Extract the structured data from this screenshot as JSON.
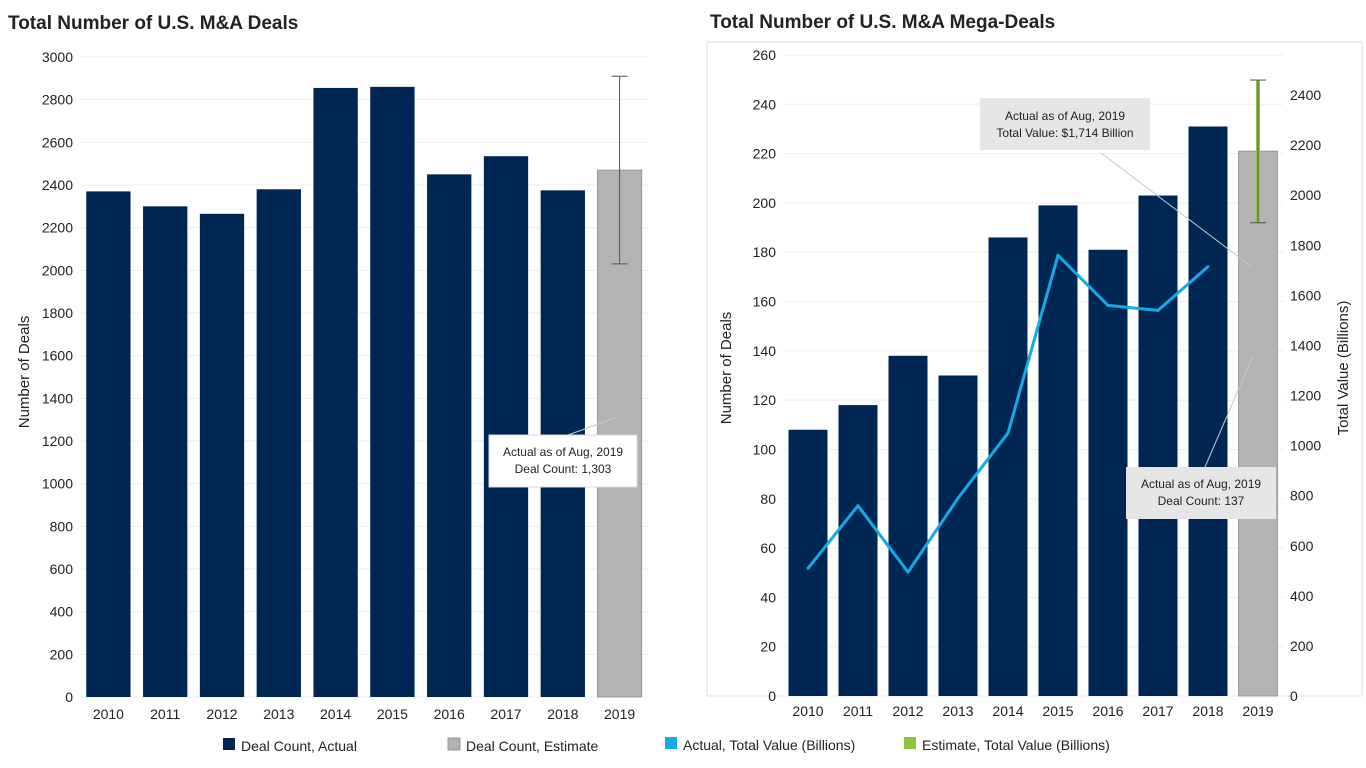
{
  "colors": {
    "actual": "#002654",
    "estimate": "#b3b3b3",
    "value_line": "#16a9e8",
    "estimate_value": "#8cc63f",
    "grid": "#eeeeee",
    "annotation_bg": "#e6e6e6"
  },
  "legend": [
    {
      "label": "Deal Count, Actual",
      "color": "#002654",
      "type": "bar"
    },
    {
      "label": "Deal Count, Estimate",
      "color": "#b3b3b3",
      "type": "bar"
    },
    {
      "label": "Actual, Total Value (Billions)",
      "color": "#16a9e8",
      "type": "line"
    },
    {
      "label": "Estimate, Total Value (Billions)",
      "color": "#8cc63f",
      "type": "line"
    }
  ],
  "chart_data": [
    {
      "type": "bar",
      "title": "Total Number of U.S. M&A Deals",
      "ylabel": "Number of Deals",
      "xlabel": "",
      "ylim": [
        0,
        3000
      ],
      "yticks": [
        0,
        200,
        400,
        600,
        800,
        1000,
        1200,
        1400,
        1600,
        1800,
        2000,
        2200,
        2400,
        2600,
        2800,
        3000
      ],
      "categories": [
        "2010",
        "2011",
        "2012",
        "2013",
        "2014",
        "2015",
        "2016",
        "2017",
        "2018",
        "2019"
      ],
      "series": [
        {
          "name": "Deal Count, Actual",
          "values": [
            2370,
            2300,
            2265,
            2380,
            2855,
            2860,
            2450,
            2535,
            2375,
            null
          ]
        },
        {
          "name": "Deal Count, Estimate",
          "values": [
            null,
            null,
            null,
            null,
            null,
            null,
            null,
            null,
            null,
            2470
          ]
        }
      ],
      "error_bar": {
        "category": "2019",
        "low": 2030,
        "high": 2910
      },
      "annotation": {
        "lines": [
          "Actual as of Aug, 2019",
          "Deal Count: 1,303"
        ],
        "category": "2019"
      }
    },
    {
      "type": "bar",
      "title": "Total Number of U.S. M&A Mega-Deals",
      "ylabel": "Number of Deals",
      "y2label": "Total Value (Billions)",
      "xlabel": "",
      "ylim": [
        0,
        260
      ],
      "yticks": [
        0,
        20,
        40,
        60,
        80,
        100,
        120,
        140,
        160,
        180,
        200,
        220,
        240,
        260
      ],
      "y2lim": [
        0,
        2560
      ],
      "y2ticks": [
        0,
        200,
        400,
        600,
        800,
        1000,
        1200,
        1400,
        1600,
        1800,
        2000,
        2200,
        2400
      ],
      "categories": [
        "2010",
        "2011",
        "2012",
        "2013",
        "2014",
        "2015",
        "2016",
        "2017",
        "2018",
        "2019"
      ],
      "series": [
        {
          "name": "Deal Count, Actual",
          "values": [
            108,
            118,
            138,
            130,
            186,
            199,
            181,
            203,
            231,
            null
          ]
        },
        {
          "name": "Deal Count, Estimate",
          "values": [
            null,
            null,
            null,
            null,
            null,
            null,
            null,
            null,
            null,
            221
          ]
        }
      ],
      "line_series": {
        "name": "Actual, Total Value (Billions)",
        "axis": "right",
        "values": [
          510,
          760,
          495,
          790,
          1050,
          1760,
          1560,
          1540,
          1715,
          null
        ]
      },
      "error_bar": {
        "category": "2019",
        "low": 1890,
        "high": 2460,
        "color": "estimate_value"
      },
      "annotations": [
        {
          "lines": [
            "Actual as of Aug, 2019",
            "Total Value: $1,714 Billion"
          ]
        },
        {
          "lines": [
            "Actual as of Aug, 2019",
            "Deal Count: 137"
          ]
        }
      ]
    }
  ]
}
